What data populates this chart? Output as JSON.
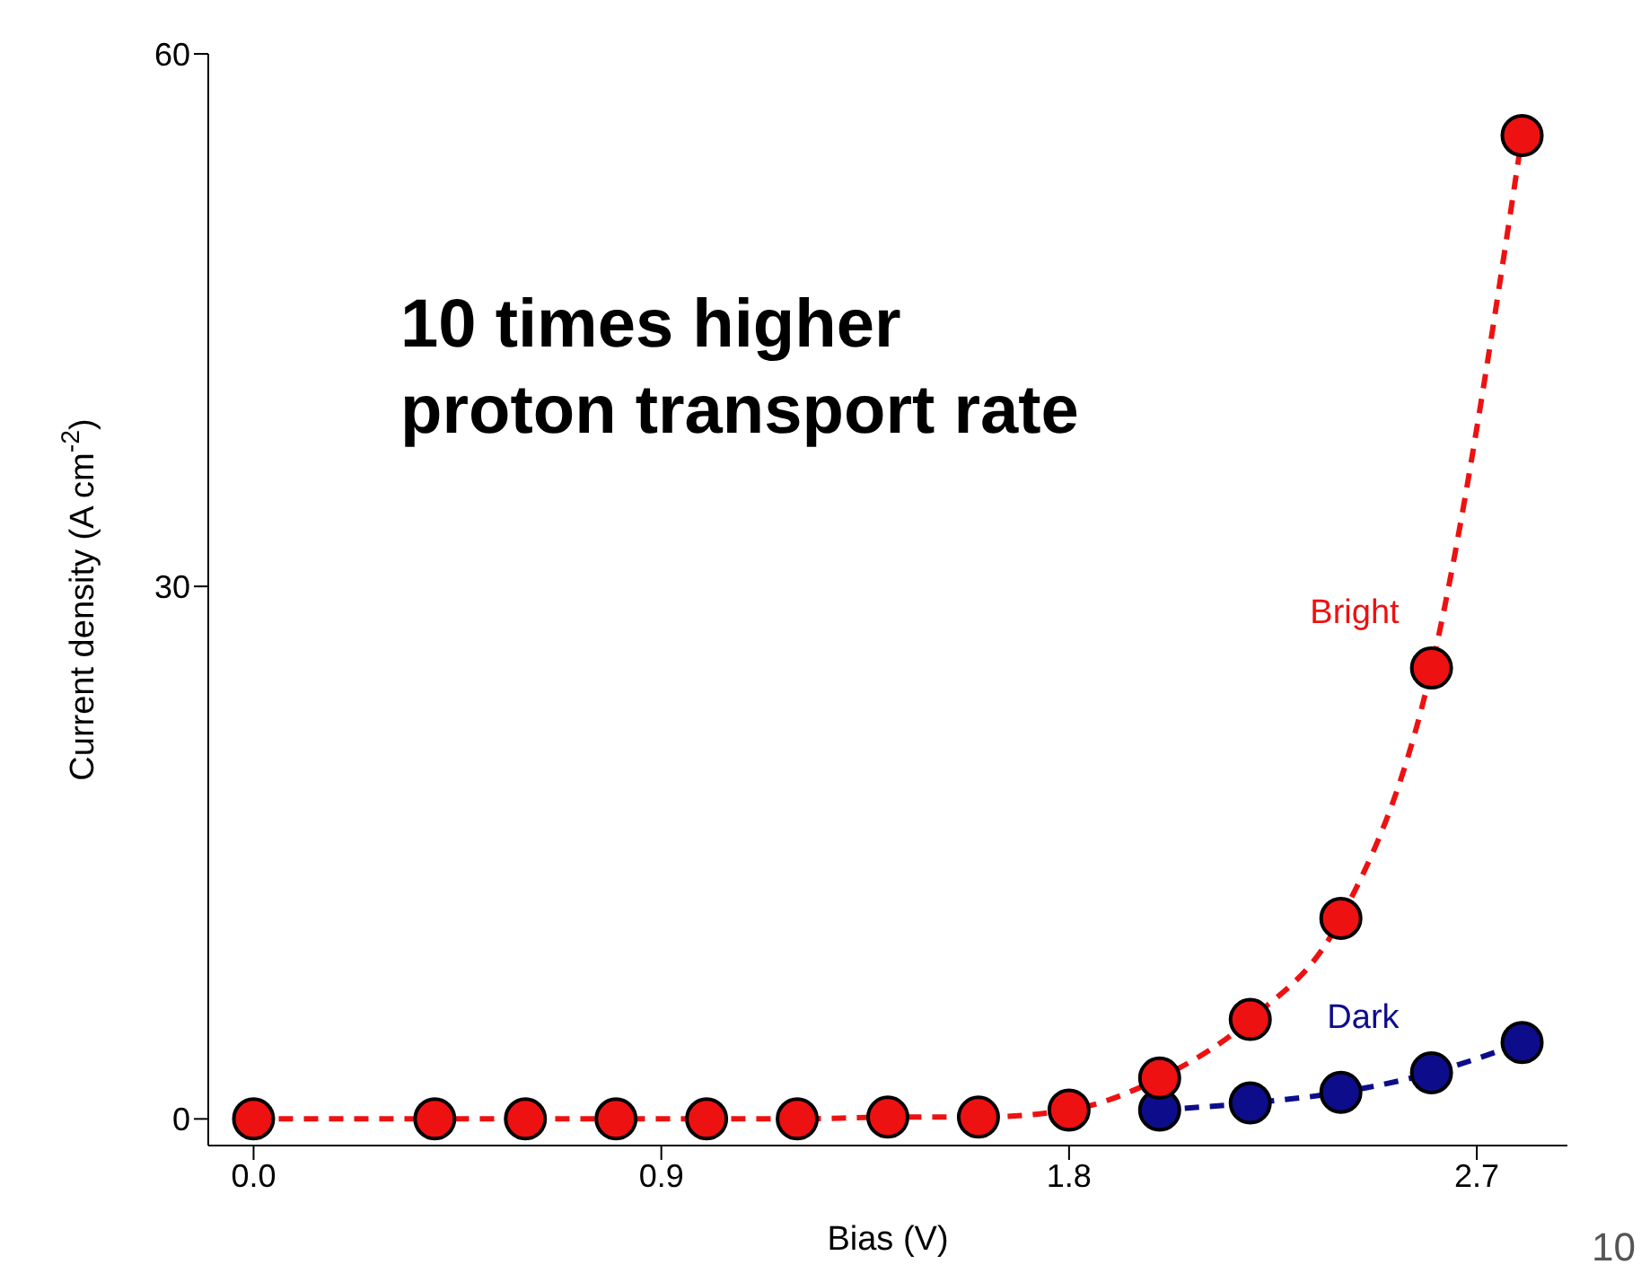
{
  "chart_data": {
    "type": "line",
    "xlabel": "Bias (V)",
    "ylabel": "Current density (A cm$^{-2}$)",
    "xlim": [
      -0.1,
      2.9
    ],
    "xticks": [
      {
        "value": 0,
        "label": "0.0"
      },
      {
        "value": 0.9,
        "label": "0.9"
      },
      {
        "value": 1.8,
        "label": "1.8"
      },
      {
        "value": 2.7,
        "label": "2.7"
      }
    ],
    "ylim": [
      -1.5,
      60
    ],
    "yticks": [
      0,
      30,
      60
    ],
    "grid": false,
    "legend": false,
    "marker": "circle",
    "line_style": "dashed",
    "series": [
      {
        "name": "Dark",
        "color": "#0d0d8c",
        "x": [
          2.0,
          2.2,
          2.4,
          2.6,
          2.8
        ],
        "values": [
          0.5,
          0.9,
          1.5,
          2.6,
          4.3
        ]
      },
      {
        "name": "Bright",
        "color": "#ee1111",
        "x": [
          0,
          0.4,
          0.6,
          0.8,
          1.0,
          1.2,
          1.4,
          1.6,
          1.8,
          2.0,
          2.2,
          2.4,
          2.6,
          2.8
        ],
        "values": [
          0,
          0,
          0,
          0,
          0,
          0,
          0.1,
          0.1,
          0.5,
          2.3,
          5.6,
          11.3,
          25.4,
          55.4
        ]
      }
    ],
    "annotations": [
      "10 times higher\nproton transport rate",
      "10"
    ]
  }
}
